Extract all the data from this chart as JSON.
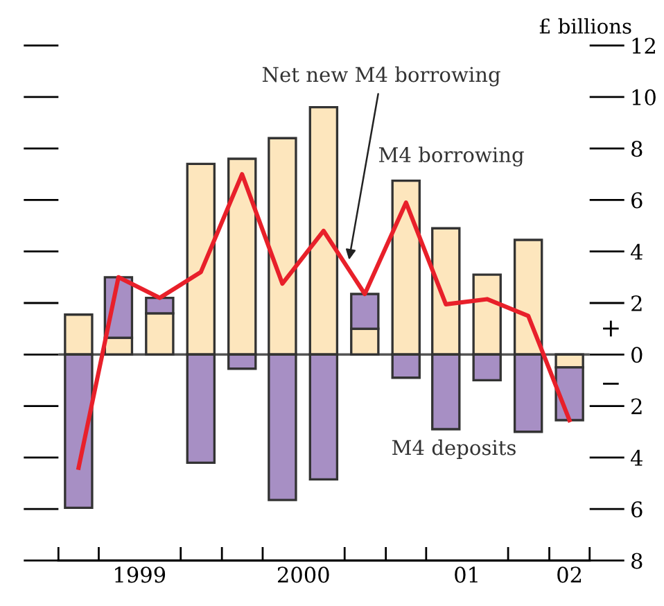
{
  "chart_data": {
    "type": "bar",
    "stacked": true,
    "ylabel": "£ billions",
    "x": [
      "1999-02-15",
      "1999-05-15",
      "1999-08-15",
      "1999-11-15",
      "2000-02-15",
      "2000-05-15",
      "2000-08-15",
      "2000-11-15",
      "2001-02-15",
      "2001-05-15",
      "2001-08-15",
      "2001-11-15",
      "2002-02-15"
    ],
    "xlim": [
      "1999-01-01",
      "2002-04-01"
    ],
    "xticks": [
      {
        "value": "1999-01-01",
        "label": null
      },
      {
        "value": "1999-04-01",
        "label": null
      },
      {
        "value": "1999-07-01",
        "label": "1999"
      },
      {
        "value": "1999-10-01",
        "label": null
      },
      {
        "value": "2000-01-01",
        "label": null
      },
      {
        "value": "2000-04-01",
        "label": null
      },
      {
        "value": "2000-07-01",
        "label": "2000"
      },
      {
        "value": "2000-10-01",
        "label": null
      },
      {
        "value": "2001-01-01",
        "label": null
      },
      {
        "value": "2001-04-01",
        "label": null
      },
      {
        "value": "2001-07-01",
        "label": "01"
      },
      {
        "value": "2001-10-01",
        "label": null
      },
      {
        "value": "2002-01-01",
        "label": null
      },
      {
        "value": "2002-02-15",
        "label": "02"
      },
      {
        "value": "2002-04-01",
        "label": null
      }
    ],
    "ylim": [
      -8,
      12
    ],
    "yticks": [
      {
        "value": -8,
        "label": "8"
      },
      {
        "value": -6,
        "label": "6"
      },
      {
        "value": -4,
        "label": "4"
      },
      {
        "value": -2,
        "label": "2"
      },
      0,
      2,
      4,
      6,
      8,
      10,
      12
    ],
    "series": [
      {
        "name": "M4 borrowing",
        "color": "#fde6bd",
        "values": [
          1.55,
          0.65,
          1.6,
          7.4,
          7.6,
          8.4,
          9.6,
          1.0,
          6.75,
          4.9,
          3.1,
          4.45,
          -0.5
        ]
      },
      {
        "name": "M4 deposits",
        "color": "#a78fc4",
        "values": [
          -5.95,
          2.35,
          0.6,
          -4.2,
          -0.55,
          -5.65,
          -4.85,
          1.35,
          -0.9,
          -2.9,
          -1.0,
          -3.0,
          -2.05
        ]
      },
      {
        "name": "Net new M4 borrowing",
        "type": "line",
        "color": "#e8202a",
        "values": [
          -4.4,
          3.0,
          2.2,
          3.2,
          7.0,
          2.75,
          4.8,
          2.35,
          5.9,
          1.95,
          2.15,
          1.5,
          -2.55
        ]
      }
    ],
    "ref_lines": [
      {
        "axis": "y",
        "value": 0,
        "color": "#555555"
      }
    ],
    "annotations": [
      "+",
      "−"
    ],
    "grid": false,
    "legend": false,
    "marker": "none",
    "line_style": "solid"
  }
}
